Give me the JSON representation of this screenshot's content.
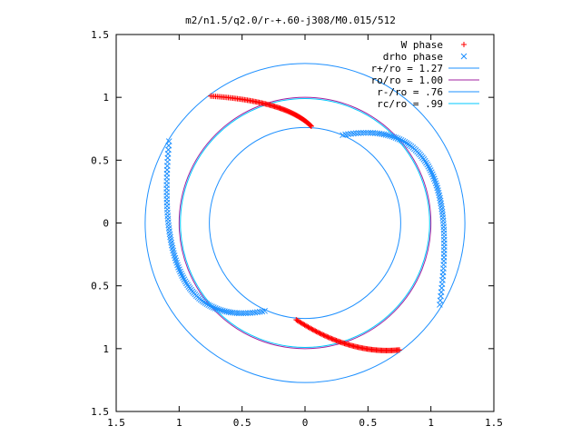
{
  "chart_data": {
    "type": "scatter",
    "title": "m2/n1.5/q2.0/r-+.60-j308/M0.015/512",
    "xlim": [
      -1.5,
      1.5
    ],
    "ylim": [
      -1.5,
      1.5
    ],
    "xticks": [
      -1.5,
      -1,
      -0.5,
      0,
      0.5,
      1,
      1.5
    ],
    "xtick_labels": [
      "1.5",
      "1",
      "0.5",
      "0",
      "0.5",
      "1",
      "1.5"
    ],
    "yticks": [
      1.5,
      1,
      0.5,
      0,
      -0.5,
      -1,
      -1.5
    ],
    "ytick_labels": [
      "1.5",
      "1",
      "0.5",
      "0",
      "0.5",
      "1",
      "1.5"
    ],
    "grid": false,
    "legend_position": "top-right",
    "series": [
      {
        "name": "W phase",
        "kind": "points",
        "marker": "plus",
        "color": "#ff0000",
        "arcs": [
          {
            "start": [
              -0.75,
              1.01
            ],
            "mid": [
              -0.25,
              0.93
            ],
            "end": [
              0.05,
              0.77
            ]
          },
          {
            "start": [
              -0.07,
              -0.77
            ],
            "mid": [
              0.35,
              -0.97
            ],
            "end": [
              0.75,
              -1.01
            ]
          }
        ]
      },
      {
        "name": "drho phase",
        "kind": "points",
        "marker": "cross",
        "color": "#1e90ff",
        "arcs": [
          {
            "start": [
              0.3,
              0.7
            ],
            "mid": [
              0.98,
              0.45
            ],
            "end": [
              1.07,
              -0.65
            ]
          },
          {
            "start": [
              -1.08,
              0.65
            ],
            "mid": [
              -0.96,
              -0.45
            ],
            "end": [
              -0.32,
              -0.7
            ]
          }
        ]
      },
      {
        "name": "r+/ro = 1.27",
        "kind": "circle",
        "radius": 1.27,
        "color": "#1e90ff"
      },
      {
        "name": "ro/ro = 1.00",
        "kind": "circle",
        "radius": 1.0,
        "color": "#a020a0"
      },
      {
        "name": "r-/ro = .76",
        "kind": "circle",
        "radius": 0.76,
        "color": "#1e90ff"
      },
      {
        "name": "rc/ro = .99",
        "kind": "circle",
        "radius": 0.99,
        "color": "#00c8ff"
      }
    ]
  }
}
